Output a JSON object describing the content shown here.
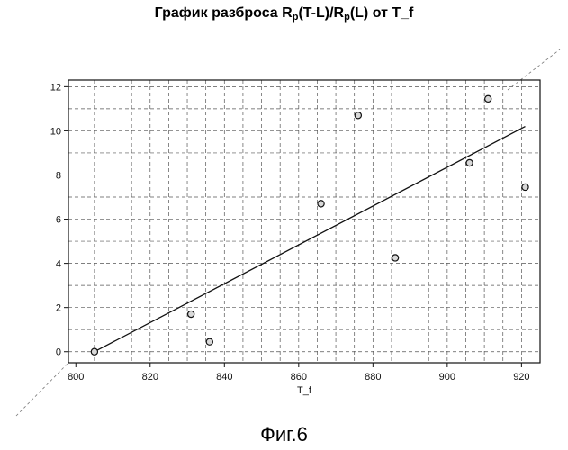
{
  "chart_data": {
    "type": "scatter",
    "title": {
      "prefix": "График разброса R",
      "sub1": "p",
      "middle": "(T-L)/R",
      "sub2": "p",
      "suffix": "(L) от T_f"
    },
    "xlabel": "T_f",
    "ylabel": "",
    "xlim": [
      798,
      925
    ],
    "ylim": [
      -0.5,
      12.3
    ],
    "x_ticks": [
      800,
      820,
      840,
      860,
      880,
      900,
      920
    ],
    "y_ticks": [
      0,
      2,
      4,
      6,
      8,
      10,
      12
    ],
    "grid": true,
    "points": [
      {
        "x": 805,
        "y": 0.0
      },
      {
        "x": 831,
        "y": 1.7
      },
      {
        "x": 836,
        "y": 0.45
      },
      {
        "x": 866,
        "y": 6.7
      },
      {
        "x": 876,
        "y": 10.7
      },
      {
        "x": 886,
        "y": 4.25
      },
      {
        "x": 906,
        "y": 8.55
      },
      {
        "x": 911,
        "y": 11.45
      },
      {
        "x": 921,
        "y": 7.45
      }
    ],
    "fit_line": {
      "x": [
        805,
        921
      ],
      "y": [
        0.0,
        10.2
      ]
    }
  },
  "caption": "Фиг.6"
}
